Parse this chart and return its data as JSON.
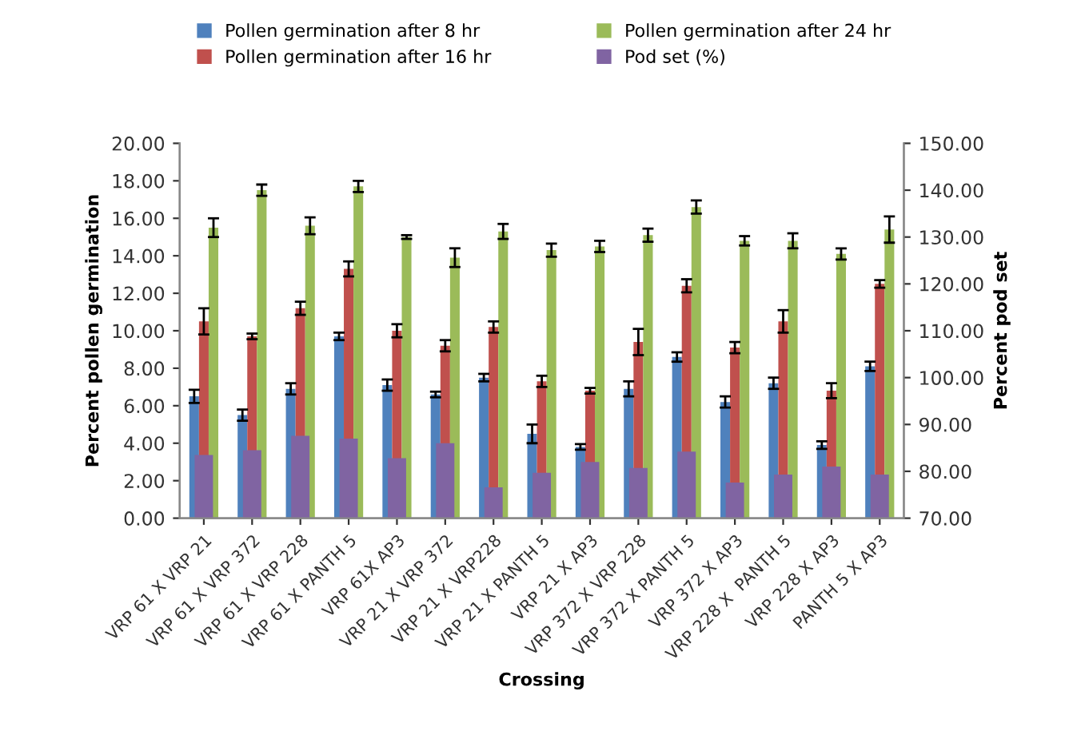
{
  "chart_data": {
    "type": "bar",
    "xlabel": "Crossing",
    "ylabel": "Percent pollen germination",
    "y2label": "Percent pod set",
    "categories": [
      "VRP 61 X VRP 21",
      "VRP 61 X VRP 372",
      "VRP 61 X VRP 228",
      "VRP 61 X PANTH 5",
      "VRP 61X AP3",
      "VRP 21 X VRP 372",
      "VRP 21 X VRP228",
      "VRP 21 X PANTH 5",
      "VRP 21 X AP3",
      "VRP 372 X VRP 228",
      "VRP 372 X PANTH 5",
      "VRP 372 X AP3",
      "VRP 228 X  PANTH 5",
      "VRP 228 X AP3",
      "PANTH 5 X AP3"
    ],
    "series": [
      {
        "name": "Pollen germination after 8 hr",
        "color": "#4f81bd",
        "values": [
          6.5,
          5.5,
          6.9,
          9.7,
          7.1,
          6.6,
          7.5,
          4.5,
          3.8,
          6.9,
          8.6,
          6.2,
          7.2,
          3.9,
          8.1
        ],
        "errors": [
          0.35,
          0.3,
          0.3,
          0.2,
          0.3,
          0.15,
          0.2,
          0.5,
          0.15,
          0.4,
          0.25,
          0.3,
          0.3,
          0.2,
          0.25
        ]
      },
      {
        "name": "Pollen germination after 16 hr",
        "color": "#c0504d",
        "values": [
          10.5,
          9.7,
          11.2,
          13.3,
          10.0,
          9.2,
          10.2,
          7.3,
          6.8,
          9.4,
          12.4,
          9.1,
          10.5,
          6.8,
          12.5
        ],
        "errors": [
          0.7,
          0.15,
          0.35,
          0.4,
          0.35,
          0.3,
          0.3,
          0.3,
          0.15,
          0.7,
          0.35,
          0.3,
          0.6,
          0.4,
          0.2
        ]
      },
      {
        "name": "Pollen germination after 24 hr",
        "color": "#9bbb59",
        "values": [
          15.5,
          17.5,
          15.6,
          17.7,
          15.0,
          13.9,
          15.3,
          14.3,
          14.5,
          15.1,
          16.6,
          14.8,
          14.8,
          14.1,
          15.4
        ],
        "errors": [
          0.5,
          0.3,
          0.45,
          0.3,
          0.1,
          0.5,
          0.4,
          0.35,
          0.3,
          0.35,
          0.35,
          0.25,
          0.4,
          0.3,
          0.7
        ]
      },
      {
        "name": "Pod set (%)",
        "color": "#8064a2",
        "axis": "y2",
        "values": [
          83.5,
          84.5,
          87.6,
          87.0,
          82.8,
          86.0,
          76.6,
          79.7,
          82.0,
          80.7,
          84.2,
          77.6,
          79.3,
          81.0,
          79.3
        ]
      }
    ],
    "ylim": [
      0,
      20
    ],
    "yticks": [
      {
        "value": 0,
        "label": "0.00"
      },
      {
        "value": 2,
        "label": "2.00"
      },
      {
        "value": 4,
        "label": "4.00"
      },
      {
        "value": 6,
        "label": "6.00"
      },
      {
        "value": 8,
        "label": "8.00"
      },
      {
        "value": 10,
        "label": "10.00"
      },
      {
        "value": 12,
        "label": "12.00"
      },
      {
        "value": 14,
        "label": "14.00"
      },
      {
        "value": 16,
        "label": "16.00"
      },
      {
        "value": 18,
        "label": "18.00"
      },
      {
        "value": 20,
        "label": "20.00"
      }
    ],
    "y2lim": [
      70,
      150
    ],
    "y2ticks": [
      {
        "value": 70,
        "label": "70.00"
      },
      {
        "value": 80,
        "label": "80.00"
      },
      {
        "value": 90,
        "label": "90.00"
      },
      {
        "value": 100,
        "label": "100.00"
      },
      {
        "value": 110,
        "label": "110.00"
      },
      {
        "value": 120,
        "label": "120.00"
      },
      {
        "value": 130,
        "label": "130.00"
      },
      {
        "value": 140,
        "label": "140.00"
      },
      {
        "value": 150,
        "label": "150.00"
      }
    ],
    "legend": "top",
    "grid": false
  }
}
